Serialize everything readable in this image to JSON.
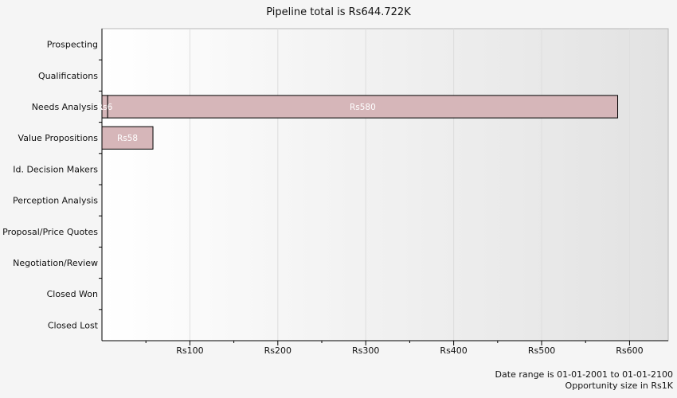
{
  "chart_data": {
    "type": "bar",
    "orientation": "horizontal",
    "title": "Pipeline total is Rs644.722K",
    "categories": [
      "Prospecting",
      "Qualifications",
      "Needs Analysis",
      "Value Propositions",
      "Id. Decision Makers",
      "Perception Analysis",
      "Proposal/Price Quotes",
      "Negotiation/Review",
      "Closed Won",
      "Closed Lost"
    ],
    "series": [
      {
        "values": [
          0,
          0,
          6.5,
          0,
          0,
          0,
          0,
          0,
          0,
          0
        ],
        "labels": [
          "",
          "",
          "Rs6",
          "",
          "",
          "",
          "",
          "",
          "",
          ""
        ]
      },
      {
        "values": [
          0,
          0,
          580,
          58,
          0,
          0,
          0,
          0,
          0,
          0
        ],
        "labels": [
          "",
          "",
          "Rs580",
          "Rs58",
          "",
          "",
          "",
          "",
          "",
          ""
        ]
      }
    ],
    "x_ticks": [
      100,
      200,
      300,
      400,
      500,
      600
    ],
    "x_tick_labels": [
      "Rs100",
      "Rs200",
      "Rs300",
      "Rs400",
      "Rs500",
      "Rs600"
    ],
    "xlim": [
      0,
      644
    ],
    "grid": true,
    "colors": {
      "bar_fill": "#d6b6b9",
      "bar_stroke": "#000000",
      "plot_gradient_start": "#ffffff",
      "plot_gradient_end": "#e2e2e2",
      "page_background": "#f5f5f5"
    }
  },
  "footer": {
    "date_range": "Date range is 01-01-2001 to 01-01-2100",
    "opportunity_size": "Opportunity size in Rs1K"
  }
}
